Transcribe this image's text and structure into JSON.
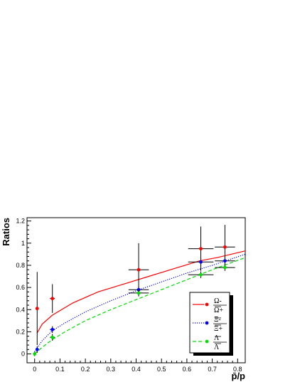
{
  "chart_data": {
    "type": "scatter",
    "xlabel": "p̄/p",
    "ylabel": "Ratios",
    "xlim": [
      -0.03,
      0.83
    ],
    "ylim": [
      -0.08,
      1.23
    ],
    "xticks": [
      "0",
      "0.1",
      "0.2",
      "0.3",
      "0.4",
      "0.5",
      "0.6",
      "0.7",
      "0.8"
    ],
    "yticks": [
      "0",
      "0.2",
      "0.4",
      "0.6",
      "0.8",
      "1",
      "1.2"
    ],
    "grid": false,
    "legend_position": "bottom-right",
    "series": [
      {
        "key": "omega",
        "legend_top": "Ω-",
        "legend_bottom": "Ω+",
        "color": "#ff0000",
        "line_style": "solid",
        "points": [
          {
            "x": 0.01,
            "y": 0.41,
            "xerr": 0.0,
            "yerr": 0.33
          },
          {
            "x": 0.07,
            "y": 0.5,
            "xerr": 0.01,
            "yerr": 0.13
          },
          {
            "x": 0.41,
            "y": 0.76,
            "xerr": 0.04,
            "yerr": 0.24
          },
          {
            "x": 0.655,
            "y": 0.95,
            "xerr": 0.05,
            "yerr": 0.2
          },
          {
            "x": 0.75,
            "y": 0.965,
            "xerr": 0.04,
            "yerr": 0.2
          }
        ],
        "curve": [
          [
            0.01,
            0.19
          ],
          [
            0.03,
            0.27
          ],
          [
            0.07,
            0.35
          ],
          [
            0.15,
            0.46
          ],
          [
            0.25,
            0.56
          ],
          [
            0.35,
            0.63
          ],
          [
            0.45,
            0.7
          ],
          [
            0.55,
            0.77
          ],
          [
            0.65,
            0.84
          ],
          [
            0.72,
            0.87
          ],
          [
            0.83,
            0.93
          ]
        ]
      },
      {
        "key": "xi",
        "legend_top": "Ξ-",
        "legend_bottom": "Ξ+",
        "color": "#0000ff",
        "line_style": "dotted",
        "points": [
          {
            "x": 0.01,
            "y": 0.04,
            "xerr": 0.0,
            "yerr": 0.03
          },
          {
            "x": 0.07,
            "y": 0.22,
            "xerr": 0.01,
            "yerr": 0.03
          },
          {
            "x": 0.41,
            "y": 0.58,
            "xerr": 0.04,
            "yerr": 0.03
          },
          {
            "x": 0.655,
            "y": 0.83,
            "xerr": 0.05,
            "yerr": 0.04
          },
          {
            "x": 0.75,
            "y": 0.84,
            "xerr": 0.04,
            "yerr": 0.05
          }
        ],
        "curve": [
          [
            0.0,
            0.02
          ],
          [
            0.03,
            0.12
          ],
          [
            0.07,
            0.21
          ],
          [
            0.12,
            0.28
          ],
          [
            0.2,
            0.38
          ],
          [
            0.3,
            0.48
          ],
          [
            0.4,
            0.57
          ],
          [
            0.5,
            0.65
          ],
          [
            0.6,
            0.73
          ],
          [
            0.7,
            0.8
          ],
          [
            0.83,
            0.9
          ]
        ]
      },
      {
        "key": "lambda",
        "legend_top": "Λ",
        "legend_bottom": "Λ",
        "color": "#00dd00",
        "line_style": "dashed",
        "points": [
          {
            "x": 0.0,
            "y": 0.0,
            "xerr": 0.0,
            "yerr": 0.02
          },
          {
            "x": 0.07,
            "y": 0.15,
            "xerr": 0.01,
            "yerr": 0.03
          },
          {
            "x": 0.41,
            "y": 0.55,
            "xerr": 0.04,
            "yerr": 0.03
          },
          {
            "x": 0.655,
            "y": 0.715,
            "xerr": 0.05,
            "yerr": 0.03
          },
          {
            "x": 0.75,
            "y": 0.78,
            "xerr": 0.04,
            "yerr": 0.03
          }
        ],
        "curve": [
          [
            0.0,
            0.0
          ],
          [
            0.03,
            0.06
          ],
          [
            0.07,
            0.13
          ],
          [
            0.12,
            0.2
          ],
          [
            0.2,
            0.3
          ],
          [
            0.3,
            0.4
          ],
          [
            0.4,
            0.49
          ],
          [
            0.5,
            0.58
          ],
          [
            0.6,
            0.67
          ],
          [
            0.7,
            0.76
          ],
          [
            0.83,
            0.87
          ]
        ]
      }
    ]
  }
}
